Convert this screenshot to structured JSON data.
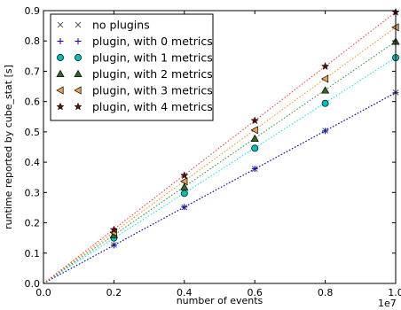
{
  "chart_data": {
    "type": "scatter",
    "xlabel": "number of events",
    "ylabel": "runtime reported by cube_stat [s]",
    "x_offset_label": "1e7",
    "xlim": [
      0.0,
      1.0
    ],
    "ylim": [
      0.0,
      0.9
    ],
    "x_ticks": [
      "0.0",
      "0.2",
      "0.4",
      "0.6",
      "0.8",
      "1.0"
    ],
    "y_ticks": [
      "0.0",
      "0.1",
      "0.2",
      "0.3",
      "0.4",
      "0.5",
      "0.6",
      "0.7",
      "0.8",
      "0.9"
    ],
    "grid": false,
    "legend_position": "top-left",
    "x": [
      0.2,
      0.4,
      0.6,
      0.8,
      1.0
    ],
    "series": [
      {
        "name": "no plugins",
        "marker": "x",
        "color": "#555555",
        "fit_color": "#555555",
        "values": [
          0.127,
          0.251,
          0.378,
          0.504,
          0.63
        ]
      },
      {
        "name": "plugin, with 0 metrics",
        "marker": "plus",
        "color": "#0000cc",
        "fit_color": "#0000cc",
        "values": [
          0.126,
          0.252,
          0.378,
          0.503,
          0.629
        ]
      },
      {
        "name": "plugin, with 1 metrics",
        "marker": "circle",
        "color": "#00bfbf",
        "fit_color": "#00e5e5",
        "values": [
          0.15,
          0.297,
          0.446,
          0.594,
          0.745
        ]
      },
      {
        "name": "plugin, with 2 metrics",
        "marker": "triangle-up",
        "color": "#2e6b1f",
        "fit_color": "#2e8b2e",
        "values": [
          0.16,
          0.318,
          0.478,
          0.637,
          0.798
        ]
      },
      {
        "name": "plugin, with 3 metrics",
        "marker": "triangle-left",
        "color": "#e8a14a",
        "fit_color": "#ff8c00",
        "values": [
          0.168,
          0.337,
          0.506,
          0.675,
          0.845
        ]
      },
      {
        "name": "plugin, with 4 metrics",
        "marker": "star",
        "color": "#5a0f0f",
        "fit_color": "#ff3030",
        "values": [
          0.177,
          0.356,
          0.537,
          0.716,
          0.895
        ]
      }
    ]
  }
}
